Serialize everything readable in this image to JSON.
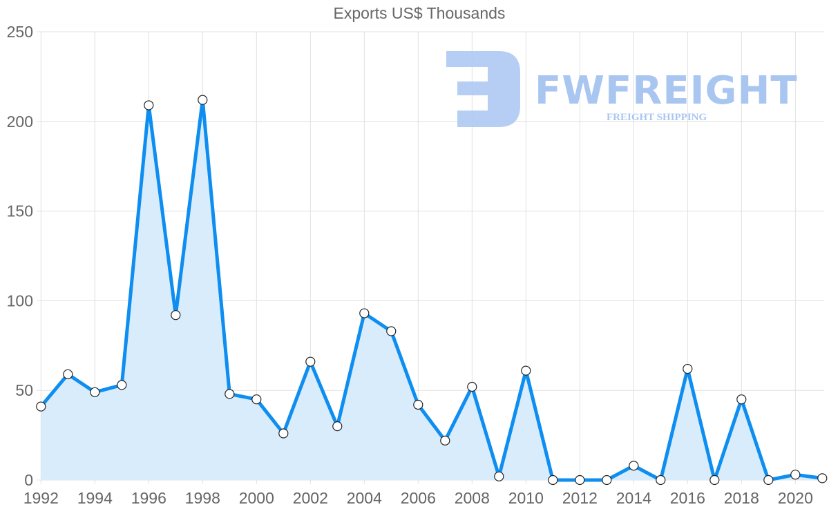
{
  "chart_data": {
    "type": "line",
    "title": "Exports US$ Thousands",
    "xlabel": "",
    "ylabel": "",
    "ylim": [
      0,
      250
    ],
    "yticks": [
      0,
      50,
      100,
      150,
      200,
      250
    ],
    "xtick_labels": [
      "1992",
      "1994",
      "1996",
      "1998",
      "2000",
      "2002",
      "2004",
      "2006",
      "2008",
      "2010",
      "2012",
      "2014",
      "2016",
      "2018",
      "2020"
    ],
    "grid": true,
    "legend": "none",
    "fill": true,
    "x": [
      1992,
      1993,
      1994,
      1995,
      1996,
      1997,
      1998,
      1999,
      2000,
      2001,
      2002,
      2003,
      2004,
      2005,
      2006,
      2007,
      2008,
      2009,
      2010,
      2011,
      2012,
      2013,
      2014,
      2015,
      2016,
      2017,
      2018,
      2019,
      2020,
      2021
    ],
    "series": [
      {
        "name": "Exports US$ Thousands",
        "values": [
          41,
          59,
          49,
          53,
          209,
          92,
          212,
          48,
          45,
          26,
          66,
          30,
          93,
          83,
          42,
          22,
          52,
          2,
          61,
          0,
          0,
          0,
          8,
          0,
          62,
          0,
          45,
          0,
          3,
          1
        ]
      }
    ]
  },
  "colors": {
    "line": "#0d8ef0",
    "fill": "#d9ecfc",
    "grid": "#e0e0e0",
    "text": "#666666",
    "watermark": "#a9c6f1"
  },
  "watermark": {
    "brand": "FWFREIGHT",
    "tagline": "FREIGHT SHIPPING"
  }
}
